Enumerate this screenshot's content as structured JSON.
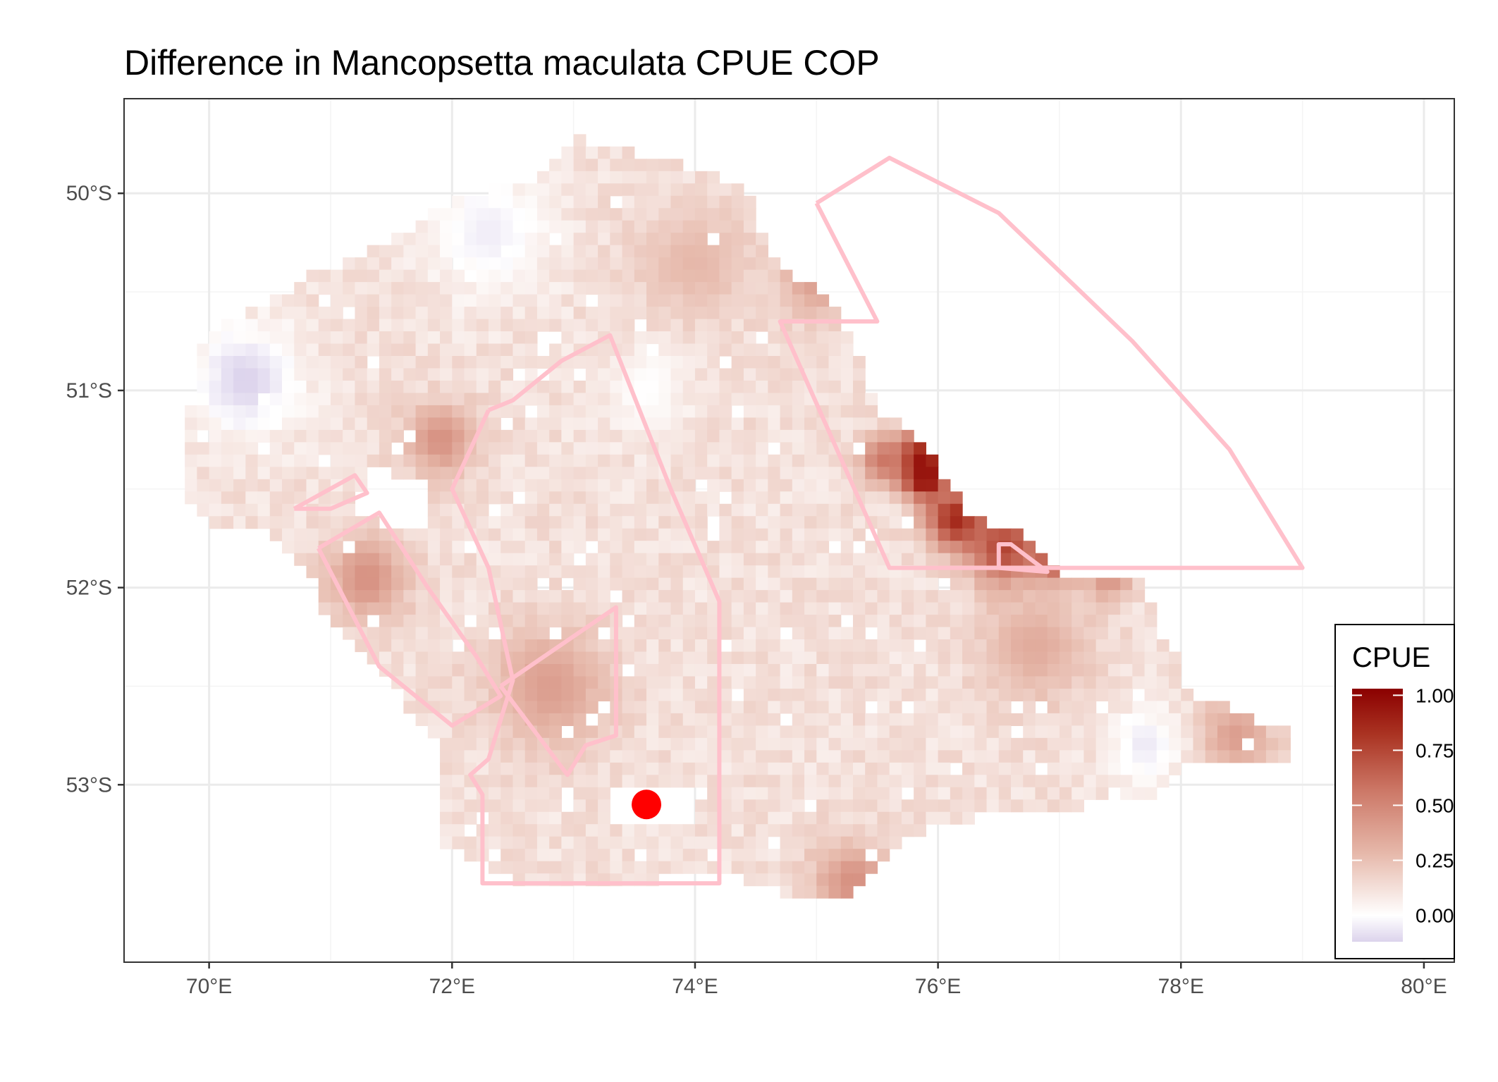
{
  "chart_data": {
    "type": "heatmap",
    "title": "Difference in  Mancopsetta maculata CPUE COP",
    "x_ticks": [
      "70°E",
      "72°E",
      "74°E",
      "76°E",
      "78°E",
      "80°E"
    ],
    "y_ticks": [
      "50°S",
      "51°S",
      "52°S",
      "53°S"
    ],
    "xlim": [
      69.3,
      80.25
    ],
    "ylim": [
      -53.9,
      -49.52
    ],
    "grid": true,
    "legend": {
      "title": "CPUE",
      "placement": "bottom-right",
      "labels": [
        "1.00",
        "0.75",
        "0.50",
        "0.25",
        "0.00"
      ],
      "values": [
        1.0,
        0.75,
        0.5,
        0.25,
        0.0
      ],
      "range": [
        -0.12,
        1.03
      ],
      "colors": {
        "low": "#dcd3ec",
        "mid": "#ffffff",
        "high": "#8b0000"
      }
    },
    "point": {
      "lon": 73.6,
      "lat": -53.1,
      "color": "#ff0000"
    },
    "outline_color": "#ffc0cb",
    "polygons": [
      {
        "name": "zone-ne-arc",
        "coords": [
          [
            75.0,
            -50.05
          ],
          [
            75.6,
            -49.82
          ],
          [
            76.5,
            -50.1
          ],
          [
            77.6,
            -50.75
          ],
          [
            78.4,
            -51.3
          ],
          [
            79.0,
            -51.9
          ],
          [
            75.6,
            -51.9
          ],
          [
            74.7,
            -50.65
          ],
          [
            75.5,
            -50.65
          ],
          [
            75.0,
            -50.05
          ]
        ]
      },
      {
        "name": "zone-central",
        "coords": [
          [
            72.3,
            -51.1
          ],
          [
            72.5,
            -51.05
          ],
          [
            72.9,
            -50.85
          ],
          [
            73.3,
            -50.72
          ],
          [
            73.8,
            -51.5
          ],
          [
            74.2,
            -52.07
          ],
          [
            74.2,
            -53.5
          ],
          [
            72.25,
            -53.5
          ],
          [
            72.25,
            -53.05
          ],
          [
            72.15,
            -52.95
          ],
          [
            72.3,
            -52.87
          ],
          [
            72.5,
            -52.47
          ],
          [
            72.3,
            -51.9
          ],
          [
            72.0,
            -51.5
          ],
          [
            72.3,
            -51.1
          ]
        ]
      },
      {
        "name": "zone-west-strip",
        "coords": [
          [
            70.9,
            -51.8
          ],
          [
            71.4,
            -51.62
          ],
          [
            71.8,
            -52.0
          ],
          [
            72.2,
            -52.35
          ],
          [
            72.4,
            -52.55
          ],
          [
            72.0,
            -52.7
          ],
          [
            71.4,
            -52.4
          ],
          [
            70.9,
            -51.8
          ]
        ]
      },
      {
        "name": "zone-central-inner",
        "coords": [
          [
            72.4,
            -52.5
          ],
          [
            73.35,
            -52.1
          ],
          [
            73.35,
            -52.75
          ],
          [
            73.1,
            -52.8
          ],
          [
            72.95,
            -52.95
          ],
          [
            72.4,
            -52.5
          ]
        ]
      },
      {
        "name": "zone-west-small",
        "coords": [
          [
            70.7,
            -51.6
          ],
          [
            71.2,
            -51.43
          ],
          [
            71.3,
            -51.52
          ],
          [
            71.0,
            -51.6
          ],
          [
            70.7,
            -51.6
          ]
        ]
      },
      {
        "name": "zone-notch",
        "coords": [
          [
            76.5,
            -51.9
          ],
          [
            76.5,
            -51.78
          ],
          [
            76.6,
            -51.78
          ],
          [
            76.9,
            -51.92
          ],
          [
            76.5,
            -51.9
          ]
        ]
      }
    ],
    "hotspots": [
      {
        "lon": 75.85,
        "lat": -51.35,
        "value": 0.95,
        "radius": 0.22
      },
      {
        "lon": 75.9,
        "lat": -51.45,
        "value": 1.0,
        "radius": 0.15
      },
      {
        "lon": 76.15,
        "lat": -51.65,
        "value": 0.85,
        "radius": 0.25
      },
      {
        "lon": 76.55,
        "lat": -51.8,
        "value": 0.75,
        "radius": 0.3
      },
      {
        "lon": 77.0,
        "lat": -51.83,
        "value": 0.95,
        "radius": 0.18
      },
      {
        "lon": 77.4,
        "lat": -51.95,
        "value": 0.45,
        "radius": 0.2
      },
      {
        "lon": 75.55,
        "lat": -51.35,
        "value": 0.55,
        "radius": 0.2
      },
      {
        "lon": 71.9,
        "lat": -51.25,
        "value": 0.45,
        "radius": 0.3
      },
      {
        "lon": 71.3,
        "lat": -51.95,
        "value": 0.45,
        "radius": 0.35
      },
      {
        "lon": 72.8,
        "lat": -52.5,
        "value": 0.4,
        "radius": 0.5
      },
      {
        "lon": 75.0,
        "lat": -50.45,
        "value": 0.4,
        "radius": 0.3
      },
      {
        "lon": 75.3,
        "lat": -53.5,
        "value": 0.45,
        "radius": 0.35
      },
      {
        "lon": 78.45,
        "lat": -52.75,
        "value": 0.4,
        "radius": 0.3
      },
      {
        "lon": 74.0,
        "lat": -50.35,
        "value": 0.3,
        "radius": 0.45
      },
      {
        "lon": 76.8,
        "lat": -52.3,
        "value": 0.35,
        "radius": 0.45
      },
      {
        "lon": 70.3,
        "lat": -50.95,
        "value": -0.12,
        "radius": 0.45
      },
      {
        "lon": 72.3,
        "lat": -50.2,
        "value": -0.05,
        "radius": 0.5
      },
      {
        "lon": 77.7,
        "lat": -52.8,
        "value": -0.06,
        "radius": 0.3
      },
      {
        "lon": 73.6,
        "lat": -51.0,
        "value": 0.0,
        "radius": 0.35
      }
    ]
  }
}
